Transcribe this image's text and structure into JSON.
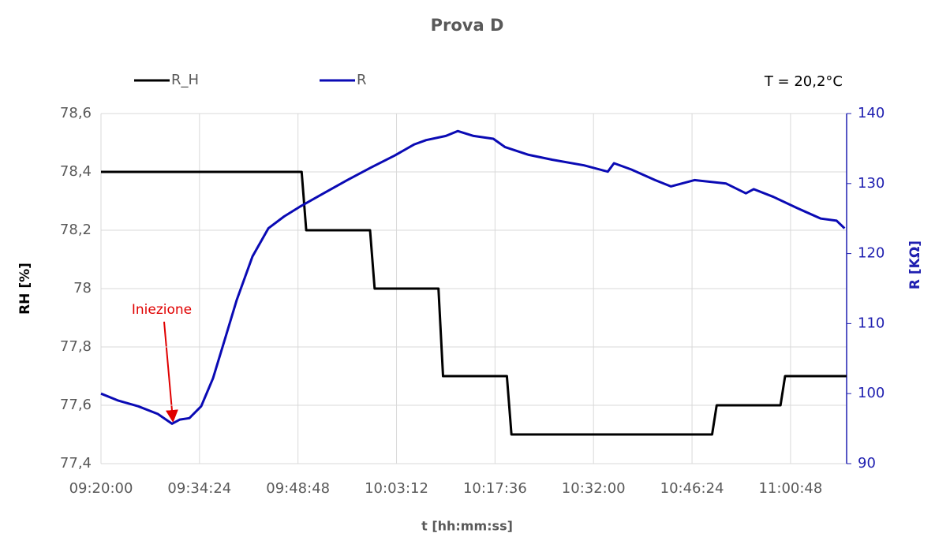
{
  "chart_data": {
    "type": "line",
    "title": "Prova D",
    "xlabel": "t [hh:mm:ss]",
    "ylabel": "RH [%]",
    "y2label": "R [KΩ]",
    "annotations": [
      "Iniezione",
      "T = 20,2°C"
    ],
    "xlim": [
      "09:20:00",
      "11:09:00"
    ],
    "xticks": [
      "09:20:00",
      "09:34:24",
      "09:48:48",
      "10:03:12",
      "10:17:36",
      "10:32:00",
      "10:46:24",
      "11:00:48"
    ],
    "ylim": [
      77.4,
      78.6
    ],
    "yticks": [
      {
        "value": 77.4,
        "label": "77,4"
      },
      {
        "value": 77.6,
        "label": "77,6"
      },
      {
        "value": 77.8,
        "label": "77,8"
      },
      78,
      {
        "value": 78.2,
        "label": "78,2"
      },
      {
        "value": 78.4,
        "label": "78,4"
      },
      {
        "value": 78.6,
        "label": "78,6"
      }
    ],
    "y2lim": [
      90,
      140
    ],
    "y2ticks": [
      90,
      100,
      110,
      120,
      130,
      140
    ],
    "grid": true,
    "legend": "top",
    "series": [
      {
        "name": "R_H",
        "color": "#000000",
        "x": [
          "09:20:00",
          "09:49:20",
          "09:50:00",
          "09:59:20",
          "10:00:00",
          "10:09:20",
          "10:10:00",
          "10:19:20",
          "10:20:00",
          "10:49:20",
          "10:50:00",
          "10:59:20",
          "11:00:00",
          "11:09:00"
        ],
        "values": [
          78.4,
          78.4,
          78.2,
          78.2,
          78.0,
          78.0,
          77.7,
          77.7,
          77.5,
          77.5,
          77.6,
          77.6,
          77.7,
          77.7
        ]
      },
      {
        "name": "R",
        "color": "#0a0ab4",
        "axis": "y2",
        "x": [
          "09:20:00",
          "09:22:32",
          "09:25:25",
          "09:28:18",
          "09:30:23",
          "09:31:32",
          "09:32:55",
          "09:34:39",
          "09:36:23",
          "09:38:07",
          "09:39:51",
          "09:42:09",
          "09:44:28",
          "09:46:46",
          "09:49:05",
          "09:52:32",
          "09:56:00",
          "09:59:28",
          "10:02:55",
          "10:05:48",
          "10:07:32",
          "10:10:25",
          "10:12:09",
          "10:14:28",
          "10:17:21",
          "10:19:05",
          "10:22:32",
          "10:26:00",
          "10:30:37",
          "10:34:05",
          "10:35:00",
          "10:37:32",
          "10:41:00",
          "10:43:18",
          "10:46:46",
          "10:51:23",
          "10:54:16",
          "10:55:25",
          "10:58:18",
          "11:01:46",
          "11:05:14",
          "11:07:32",
          "11:08:42"
        ],
        "values": [
          100.0,
          99.0,
          98.2,
          97.1,
          95.7,
          96.3,
          96.5,
          98.2,
          102.2,
          107.8,
          113.4,
          119.6,
          123.6,
          125.3,
          126.7,
          128.6,
          130.5,
          132.3,
          134.0,
          135.6,
          136.2,
          136.8,
          137.5,
          136.8,
          136.4,
          135.2,
          134.1,
          133.4,
          132.6,
          131.7,
          132.9,
          132.0,
          130.5,
          129.6,
          130.5,
          130.0,
          128.6,
          129.2,
          128.1,
          126.5,
          125.0,
          124.7,
          123.6
        ]
      }
    ]
  }
}
